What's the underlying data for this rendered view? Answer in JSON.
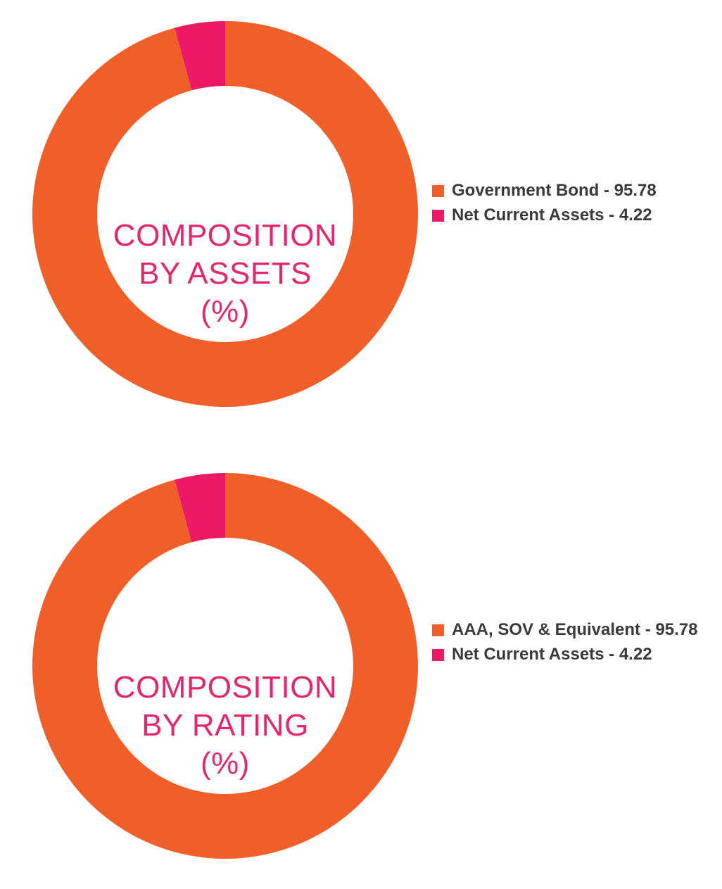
{
  "chart_data": [
    {
      "type": "pie",
      "variant": "donut",
      "title_lines": [
        "COMPOSITION",
        "BY ASSETS",
        "(%)"
      ],
      "slices": [
        {
          "label": "Government Bond - 95.78",
          "value": 95.78,
          "color": "#f05f29"
        },
        {
          "label": "Net Current Assets - 4.22",
          "value": 4.22,
          "color": "#ec1a66"
        }
      ],
      "legend_position": "right"
    },
    {
      "type": "pie",
      "variant": "donut",
      "title_lines": [
        "COMPOSITION",
        "BY RATING",
        "(%)"
      ],
      "slices": [
        {
          "label": "AAA, SOV & Equivalent - 95.78",
          "value": 95.78,
          "color": "#f05f29"
        },
        {
          "label": "Net Current Assets - 4.22",
          "value": 4.22,
          "color": "#ec1a66"
        }
      ],
      "legend_position": "right"
    }
  ],
  "colors": {
    "title": "#e2276f",
    "legend_text": "#3a3a3a"
  }
}
